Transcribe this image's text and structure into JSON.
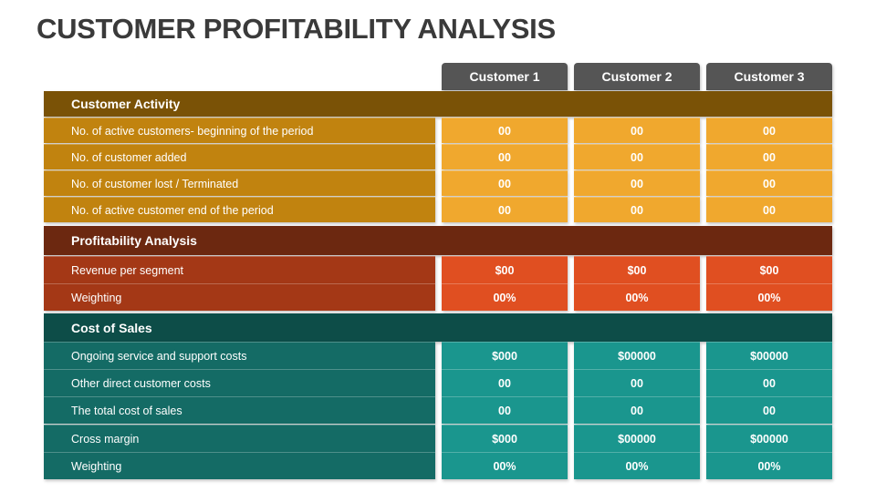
{
  "title": "CUSTOMER PROFITABILITY ANALYSIS",
  "columns": [
    "Customer 1",
    "Customer 2",
    "Customer 3"
  ],
  "colors": {
    "activity_header": "#7a5206",
    "activity_label": "#c1830f",
    "activity_value": "#f0a82e",
    "profit_header": "#6c2810",
    "profit_label": "#a43816",
    "profit_value": "#e04f21",
    "cost_header": "#0d4d48",
    "cost_label": "#146b65",
    "cost_value": "#1a968e",
    "column_header": "#555555"
  },
  "sections": [
    {
      "title": "Customer Activity",
      "rows": [
        {
          "label": "No. of active customers- beginning of the period",
          "values": [
            "00",
            "00",
            "00"
          ]
        },
        {
          "label": "No. of customer added",
          "values": [
            "00",
            "00",
            "00"
          ]
        },
        {
          "label": "No. of customer lost / Terminated",
          "values": [
            "00",
            "00",
            "00"
          ]
        },
        {
          "label": "No. of active customer end of the period",
          "values": [
            "00",
            "00",
            "00"
          ]
        }
      ]
    },
    {
      "title": "Profitability Analysis",
      "rows": [
        {
          "label": "Revenue per segment",
          "values": [
            "$00",
            "$00",
            "$00"
          ]
        },
        {
          "label": "Weighting",
          "values": [
            "00%",
            "00%",
            "00%"
          ]
        }
      ]
    },
    {
      "title": "Cost of Sales",
      "rows": [
        {
          "label": "Ongoing service and support costs",
          "values": [
            "$000",
            "$00000",
            "$00000"
          ]
        },
        {
          "label": "Other direct customer costs",
          "values": [
            "00",
            "00",
            "00"
          ]
        },
        {
          "label": "The total cost of sales",
          "values": [
            "00",
            "00",
            "00"
          ]
        },
        {
          "label": "Cross margin",
          "values": [
            "$000",
            "$00000",
            "$00000"
          ]
        },
        {
          "label": "Weighting",
          "values": [
            "00%",
            "00%",
            "00%"
          ]
        }
      ]
    }
  ]
}
